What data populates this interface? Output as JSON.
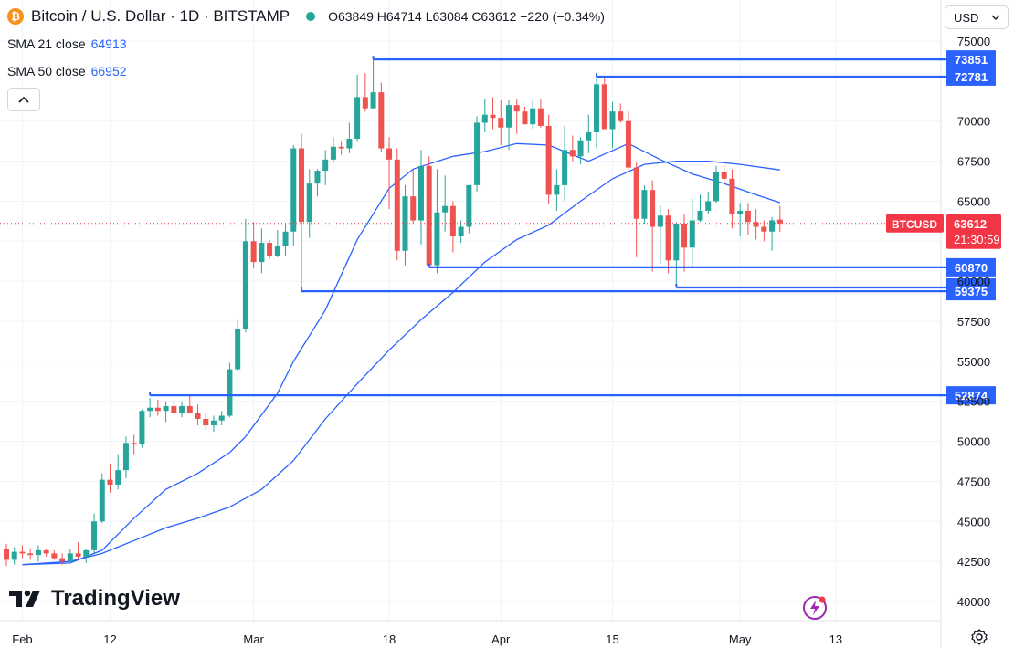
{
  "header": {
    "coin_glyph": "₿",
    "title": "Bitcoin / U.S. Dollar · 1D · BITSTAMP",
    "ohlc": "O63849 H64714 L63084 C63612 −220 (−0.34%)"
  },
  "indicators": [
    {
      "label": "SMA 21 close",
      "value": "64913",
      "color": "#2962ff"
    },
    {
      "label": "SMA 50 close",
      "value": "66952",
      "color": "#2962ff"
    }
  ],
  "collapse_glyph": "^",
  "currency_selector": {
    "label": "USD",
    "chevron": "⌄"
  },
  "branding": {
    "mark": "17",
    "name": "TradingView"
  },
  "icons": [
    "bitcoin-icon",
    "market-status-icon",
    "collapse-icon",
    "chevron-down-icon",
    "settings-gear-icon",
    "lightning-icon",
    "tradingview-logo-icon"
  ],
  "colors": {
    "up": "#26a69a",
    "down": "#ef5350",
    "sma": "#2962ff",
    "levels": "#2962ff",
    "last_price": "#f23645"
  },
  "chart_data": {
    "type": "candlestick",
    "symbol": "BTCUSD",
    "ylim": [
      39500,
      75700
    ],
    "yticks": [
      40000,
      42500,
      45000,
      47500,
      50000,
      52500,
      55000,
      57500,
      60000,
      62500,
      65000,
      67500,
      70000,
      75000
    ],
    "xticks": [
      {
        "label": "Feb",
        "date": "2024-02-01"
      },
      {
        "label": "12",
        "date": "2024-02-12"
      },
      {
        "label": "Mar",
        "date": "2024-03-01"
      },
      {
        "label": "18",
        "date": "2024-03-18"
      },
      {
        "label": "Apr",
        "date": "2024-04-01"
      },
      {
        "label": "15",
        "date": "2024-04-15"
      },
      {
        "label": "May",
        "date": "2024-05-01"
      },
      {
        "label": "13",
        "date": "2024-05-13"
      }
    ],
    "start_date": "2024-01-30",
    "candles": [
      [
        43300,
        43600,
        42200,
        42600
      ],
      [
        42600,
        43400,
        42300,
        43100
      ],
      [
        43100,
        43500,
        42700,
        43000
      ],
      [
        43000,
        43300,
        42600,
        42900
      ],
      [
        42900,
        43500,
        42500,
        43200
      ],
      [
        43200,
        43300,
        42800,
        43000
      ],
      [
        43000,
        43200,
        42600,
        42700
      ],
      [
        42700,
        43000,
        42300,
        42500
      ],
      [
        42500,
        43300,
        42400,
        43000
      ],
      [
        43000,
        43700,
        42600,
        42800
      ],
      [
        42800,
        43300,
        42400,
        43200
      ],
      [
        43200,
        45500,
        43000,
        45000
      ],
      [
        45000,
        48000,
        44900,
        47600
      ],
      [
        47600,
        48600,
        46800,
        47300
      ],
      [
        47300,
        49200,
        47000,
        48200
      ],
      [
        48200,
        50300,
        47700,
        49900
      ],
      [
        49900,
        50400,
        49200,
        49800
      ],
      [
        49800,
        52000,
        49600,
        51900
      ],
      [
        51900,
        52700,
        51500,
        52100
      ],
      [
        52100,
        52600,
        51600,
        51900
      ],
      [
        51900,
        52500,
        51200,
        52200
      ],
      [
        52200,
        52600,
        51700,
        51800
      ],
      [
        51800,
        52500,
        51500,
        52200
      ],
      [
        52200,
        52900,
        51800,
        51800
      ],
      [
        51800,
        52300,
        51000,
        51400
      ],
      [
        51400,
        51800,
        50700,
        51000
      ],
      [
        51000,
        51600,
        50600,
        51300
      ],
      [
        51300,
        51900,
        51000,
        51600
      ],
      [
        51600,
        54900,
        51500,
        54500
      ],
      [
        54500,
        57600,
        54300,
        57000
      ],
      [
        57000,
        63900,
        56800,
        62500
      ],
      [
        62500,
        63700,
        60800,
        61200
      ],
      [
        61200,
        63300,
        60500,
        62400
      ],
      [
        62400,
        62600,
        61400,
        61600
      ],
      [
        61600,
        63200,
        61500,
        62200
      ],
      [
        62200,
        63600,
        61600,
        63100
      ],
      [
        63100,
        68500,
        62200,
        68300
      ],
      [
        68300,
        69200,
        59375,
        63700
      ],
      [
        63700,
        67000,
        62700,
        66100
      ],
      [
        66100,
        67000,
        65300,
        66900
      ],
      [
        66900,
        68200,
        66000,
        67600
      ],
      [
        67600,
        69000,
        67400,
        68400
      ],
      [
        68400,
        68700,
        67900,
        68300
      ],
      [
        68300,
        69900,
        68000,
        68900
      ],
      [
        68900,
        72900,
        68700,
        71500
      ],
      [
        71500,
        73000,
        70600,
        70800
      ],
      [
        70800,
        73851,
        70800,
        71800
      ],
      [
        71800,
        72400,
        68100,
        68300
      ],
      [
        68300,
        69000,
        64500,
        67600
      ],
      [
        67600,
        68300,
        61300,
        61900
      ],
      [
        61900,
        66000,
        61000,
        65300
      ],
      [
        65300,
        67000,
        63600,
        63800
      ],
      [
        63800,
        68200,
        62300,
        67200
      ],
      [
        67200,
        67800,
        60870,
        61000
      ],
      [
        61000,
        67000,
        60500,
        64300
      ],
      [
        64300,
        66600,
        63100,
        64700
      ],
      [
        64700,
        65000,
        61800,
        62800
      ],
      [
        62800,
        63800,
        62400,
        63400
      ],
      [
        63400,
        66000,
        63000,
        66000
      ],
      [
        66000,
        70300,
        65600,
        69900
      ],
      [
        69900,
        71400,
        69300,
        70400
      ],
      [
        70400,
        71500,
        69500,
        70200
      ],
      [
        70200,
        71300,
        68500,
        69600
      ],
      [
        69600,
        71300,
        68200,
        71000
      ],
      [
        71000,
        71400,
        69200,
        70600
      ],
      [
        70600,
        70900,
        69800,
        69800
      ],
      [
        69800,
        71300,
        69500,
        70800
      ],
      [
        70800,
        71400,
        69600,
        69700
      ],
      [
        69700,
        70400,
        64800,
        65400
      ],
      [
        65400,
        67000,
        64400,
        66000
      ],
      [
        66000,
        69700,
        65000,
        68200
      ],
      [
        68200,
        69100,
        67500,
        67800
      ],
      [
        67800,
        69000,
        67300,
        68800
      ],
      [
        68800,
        70400,
        68000,
        69300
      ],
      [
        69300,
        72781,
        68300,
        72300
      ],
      [
        72300,
        72800,
        69500,
        69500
      ],
      [
        69500,
        71200,
        68300,
        70600
      ],
      [
        70600,
        71100,
        69900,
        70000
      ],
      [
        70000,
        70600,
        67000,
        67100
      ],
      [
        67100,
        67400,
        61500,
        63900
      ],
      [
        63900,
        66000,
        63600,
        65700
      ],
      [
        65700,
        66300,
        60600,
        63400
      ],
      [
        63400,
        64700,
        61100,
        64100
      ],
      [
        64100,
        64500,
        60500,
        61300
      ],
      [
        61300,
        63700,
        59611,
        63600
      ],
      [
        63600,
        64200,
        60600,
        62100
      ],
      [
        62100,
        65200,
        60800,
        63800
      ],
      [
        63800,
        65400,
        63700,
        64400
      ],
      [
        64400,
        65600,
        64200,
        65000
      ],
      [
        65000,
        67200,
        64900,
        66800
      ],
      [
        66800,
        67300,
        66000,
        66400
      ],
      [
        66400,
        67000,
        63300,
        64200
      ],
      [
        64200,
        64900,
        62800,
        64400
      ],
      [
        64400,
        64900,
        62900,
        63700
      ],
      [
        63700,
        64500,
        62600,
        63400
      ],
      [
        63400,
        63800,
        62500,
        63100
      ],
      [
        63100,
        64000,
        61900,
        63800
      ],
      [
        63849,
        64714,
        63084,
        63612
      ]
    ],
    "series": [
      {
        "name": "SMA 21 close",
        "color": "#2962ff",
        "points": [
          [
            2,
            42300
          ],
          [
            8,
            42400
          ],
          [
            12,
            43200
          ],
          [
            16,
            45200
          ],
          [
            20,
            47000
          ],
          [
            24,
            48000
          ],
          [
            28,
            49300
          ],
          [
            30,
            50300
          ],
          [
            34,
            53000
          ],
          [
            36,
            55000
          ],
          [
            40,
            58200
          ],
          [
            44,
            62600
          ],
          [
            48,
            65800
          ],
          [
            51,
            67000
          ],
          [
            56,
            67800
          ],
          [
            60,
            68100
          ],
          [
            64,
            68600
          ],
          [
            68,
            68500
          ],
          [
            73,
            67500
          ],
          [
            78,
            68600
          ],
          [
            82,
            67600
          ],
          [
            86,
            66700
          ],
          [
            90,
            66100
          ],
          [
            94,
            65400
          ],
          [
            97,
            64913
          ]
        ]
      },
      {
        "name": "SMA 50 close",
        "color": "#2962ff",
        "points": [
          [
            2,
            42300
          ],
          [
            8,
            42500
          ],
          [
            12,
            43000
          ],
          [
            16,
            43800
          ],
          [
            20,
            44600
          ],
          [
            24,
            45200
          ],
          [
            28,
            45900
          ],
          [
            32,
            47000
          ],
          [
            36,
            48800
          ],
          [
            40,
            51400
          ],
          [
            44,
            53600
          ],
          [
            48,
            55700
          ],
          [
            52,
            57600
          ],
          [
            56,
            59300
          ],
          [
            60,
            61200
          ],
          [
            64,
            62600
          ],
          [
            68,
            63500
          ],
          [
            72,
            65000
          ],
          [
            76,
            66400
          ],
          [
            80,
            67300
          ],
          [
            84,
            67500
          ],
          [
            88,
            67500
          ],
          [
            92,
            67300
          ],
          [
            97,
            66952
          ]
        ]
      }
    ],
    "levels": [
      {
        "value": 73851,
        "label": "73851",
        "from": 46
      },
      {
        "value": 72781,
        "label": "72781",
        "from": 74
      },
      {
        "value": 60870,
        "label": "60870",
        "from": 53
      },
      {
        "value": 59611,
        "label": "59611",
        "from": 84
      },
      {
        "value": 59375,
        "label": "59375",
        "from": 37
      },
      {
        "value": 52874,
        "label": "52874",
        "from": 18
      }
    ],
    "last_price": {
      "value": 63612,
      "symbol_label": "BTCUSD",
      "price_label": "63612",
      "countdown": "21:30:59"
    }
  }
}
